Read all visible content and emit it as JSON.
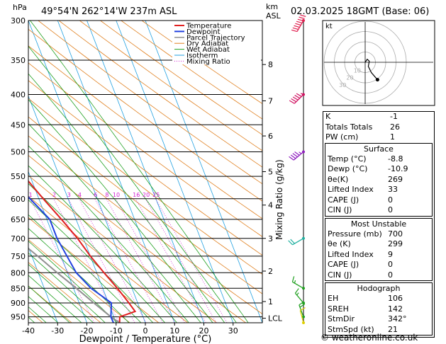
{
  "header": {
    "location": "49°54'N 262°14'W 237m ASL",
    "datetime": "02.03.2025 18GMT (Base: 06)",
    "left_unit": "hPa",
    "km_label": "km",
    "asl_label": "ASL"
  },
  "chart_data": {
    "type": "skew-t",
    "xlabel": "Dewpoint / Temperature (°C)",
    "ylabel_right": "Mixing Ratio (g/kg)",
    "x_ticks": [
      -40,
      -30,
      -20,
      -10,
      0,
      10,
      20,
      30
    ],
    "pressure_levels": [
      300,
      350,
      400,
      450,
      500,
      550,
      600,
      650,
      700,
      750,
      800,
      850,
      900,
      950
    ],
    "km_ticks": [
      {
        "label": "8",
        "p": 356
      },
      {
        "label": "7",
        "p": 410
      },
      {
        "label": "6",
        "p": 470
      },
      {
        "label": "5",
        "p": 540
      },
      {
        "label": "4",
        "p": 615
      },
      {
        "label": "3",
        "p": 700
      },
      {
        "label": "2",
        "p": 795
      },
      {
        "label": "1",
        "p": 895
      },
      {
        "label": "LCL",
        "p": 955
      }
    ],
    "mixing_ratio_labels": [
      "1",
      "2",
      "3",
      "4",
      "6",
      "8",
      "10",
      "16",
      "20",
      "25"
    ],
    "legend": [
      {
        "name": "Temperature",
        "color": "#e02020"
      },
      {
        "name": "Dewpoint",
        "color": "#2040e0"
      },
      {
        "name": "Parcel Trajectory",
        "color": "#909090"
      },
      {
        "name": "Dry Adiabat",
        "color": "#e08020"
      },
      {
        "name": "Wet Adiabat",
        "color": "#20a020"
      },
      {
        "name": "Isotherm",
        "color": "#20a0e0"
      },
      {
        "name": "Mixing Ratio",
        "color": "#d020d0"
      }
    ],
    "temperature": [
      {
        "p": 972,
        "t": -8.8
      },
      {
        "p": 950,
        "t": -8
      },
      {
        "p": 930,
        "t": -2
      },
      {
        "p": 900,
        "t": -3
      },
      {
        "p": 850,
        "t": -5
      },
      {
        "p": 800,
        "t": -7.5
      },
      {
        "p": 750,
        "t": -10
      },
      {
        "p": 700,
        "t": -12
      },
      {
        "p": 650,
        "t": -15
      },
      {
        "p": 600,
        "t": -18.5
      },
      {
        "p": 550,
        "t": -22
      },
      {
        "p": 500,
        "t": -27
      },
      {
        "p": 450,
        "t": -32
      },
      {
        "p": 400,
        "t": -38
      },
      {
        "p": 350,
        "t": -45
      },
      {
        "p": 300,
        "t": -52
      }
    ],
    "dewpoint": [
      {
        "p": 972,
        "t": -10.9
      },
      {
        "p": 950,
        "t": -11
      },
      {
        "p": 900,
        "t": -9
      },
      {
        "p": 850,
        "t": -14
      },
      {
        "p": 800,
        "t": -17
      },
      {
        "p": 750,
        "t": -18
      },
      {
        "p": 700,
        "t": -19
      },
      {
        "p": 650,
        "t": -19
      },
      {
        "p": 600,
        "t": -23
      },
      {
        "p": 550,
        "t": -27
      },
      {
        "p": 500,
        "t": -29
      },
      {
        "p": 450,
        "t": -33
      },
      {
        "p": 400,
        "t": -39
      },
      {
        "p": 350,
        "t": -56
      },
      {
        "p": 300,
        "t": -62
      }
    ],
    "parcel": [
      {
        "p": 972,
        "t": -8.8
      },
      {
        "p": 950,
        "t": -11
      },
      {
        "p": 900,
        "t": -15
      },
      {
        "p": 850,
        "t": -19
      },
      {
        "p": 800,
        "t": -23.5
      },
      {
        "p": 750,
        "t": -28
      },
      {
        "p": 700,
        "t": -33
      },
      {
        "p": 650,
        "t": -38
      },
      {
        "p": 600,
        "t": -43.5
      },
      {
        "p": 550,
        "t": -49
      },
      {
        "p": 500,
        "t": -55
      },
      {
        "p": 450,
        "t": -61.5
      },
      {
        "p": 400,
        "t": -69
      }
    ],
    "winds": [
      {
        "p": 300,
        "dir": 210,
        "spd": 80,
        "color": "#e02050"
      },
      {
        "p": 400,
        "dir": 225,
        "spd": 55,
        "color": "#d01060"
      },
      {
        "p": 500,
        "dir": 230,
        "spd": 45,
        "color": "#9020c0"
      },
      {
        "p": 700,
        "dir": 240,
        "spd": 20,
        "color": "#20b0a0"
      },
      {
        "p": 850,
        "dir": 300,
        "spd": 15,
        "color": "#20a020"
      },
      {
        "p": 900,
        "dir": 320,
        "spd": 15,
        "color": "#20a020"
      },
      {
        "p": 950,
        "dir": 340,
        "spd": 20,
        "color": "#20a020"
      },
      {
        "p": 972,
        "dir": 345,
        "spd": 10,
        "color": "#e0d000"
      }
    ]
  },
  "hodograph": {
    "label": "kt",
    "ring_labels": [
      "10",
      "20",
      "30"
    ],
    "trace": [
      [
        0,
        0
      ],
      [
        2,
        3
      ],
      [
        4,
        1
      ],
      [
        3,
        -4
      ],
      [
        6,
        -10
      ],
      [
        12,
        -17
      ]
    ]
  },
  "indices": {
    "rows": [
      {
        "label": "K",
        "value": "-1"
      },
      {
        "label": "Totals Totals",
        "value": "26"
      },
      {
        "label": "PW (cm)",
        "value": "1"
      }
    ]
  },
  "surface": {
    "title": "Surface",
    "rows": [
      {
        "label": "Temp (°C)",
        "value": "-8.8"
      },
      {
        "label": "Dewp (°C)",
        "value": "-10.9"
      },
      {
        "label": "θe(K)",
        "value": "269"
      },
      {
        "label": "Lifted Index",
        "value": "33"
      },
      {
        "label": "CAPE (J)",
        "value": "0"
      },
      {
        "label": "CIN (J)",
        "value": "0"
      }
    ]
  },
  "most_unstable": {
    "title": "Most Unstable",
    "rows": [
      {
        "label": "Pressure (mb)",
        "value": "700"
      },
      {
        "label": "θe (K)",
        "value": "299"
      },
      {
        "label": "Lifted Index",
        "value": "9"
      },
      {
        "label": "CAPE (J)",
        "value": "0"
      },
      {
        "label": "CIN (J)",
        "value": "0"
      }
    ]
  },
  "hodo_table": {
    "title": "Hodograph",
    "rows": [
      {
        "label": "EH",
        "value": "106"
      },
      {
        "label": "SREH",
        "value": "142"
      },
      {
        "label": "StmDir",
        "value": "342°"
      },
      {
        "label": "StmSpd (kt)",
        "value": "21"
      }
    ]
  },
  "copyright": "© weatheronline.co.uk"
}
